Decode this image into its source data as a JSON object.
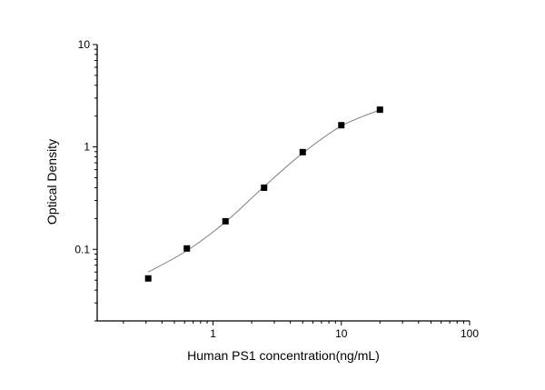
{
  "chart_data": {
    "type": "scatter",
    "title": "",
    "xlabel": "Human PS1 concentration(ng/mL)",
    "ylabel": "Optical Density",
    "xscale": "log",
    "yscale": "log",
    "xlim": [
      0.125,
      100
    ],
    "ylim": [
      0.02,
      10
    ],
    "xticks": [
      {
        "value": 1,
        "label": "1"
      },
      {
        "value": 10,
        "label": "10"
      },
      {
        "value": 100,
        "label": "100"
      }
    ],
    "yticks": [
      {
        "value": 0.1,
        "label": "0.1"
      },
      {
        "value": 1,
        "label": "1"
      },
      {
        "value": 10,
        "label": "10"
      }
    ],
    "grid": false,
    "series": [
      {
        "marker": "square",
        "color": "#000000",
        "x": [
          0.3125,
          0.625,
          1.25,
          2.5,
          5,
          10,
          20
        ],
        "y": [
          0.052,
          0.102,
          0.188,
          0.4,
          0.89,
          1.63,
          2.31
        ]
      }
    ],
    "fit_curve": {
      "color": "#808080",
      "x": [
        0.3125,
        0.625,
        1.25,
        2.5,
        5,
        10,
        20
      ],
      "y": [
        0.06,
        0.097,
        0.185,
        0.41,
        0.87,
        1.6,
        2.3
      ]
    }
  }
}
